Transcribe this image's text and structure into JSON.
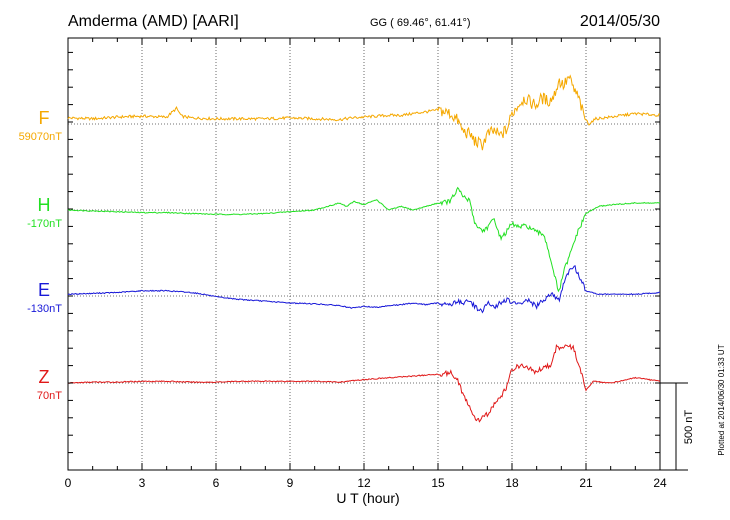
{
  "chart_data": {
    "type": "line",
    "title_station": "Amderma (AMD)  [AARI]",
    "title_coords": "GG ( 69.46°,  61.41°)",
    "title_date": "2014/05/30",
    "xlabel": "U T (hour)",
    "xlim": [
      0,
      24
    ],
    "xticks": [
      "0",
      "3",
      "6",
      "9",
      "12",
      "15",
      "18",
      "21",
      "24"
    ],
    "scale_label": "500 nT",
    "scale_nT": 500,
    "plotted_note": "Plotted at 2014/06/30 01:33 UT",
    "grid": true,
    "series": [
      {
        "name": "F",
        "baseline_label": "59070nT",
        "color": "#f5a800",
        "x": [
          0,
          1,
          2,
          3,
          4,
          4.4,
          4.6,
          5,
          6,
          7,
          8,
          9,
          10,
          11,
          11.5,
          12,
          12.5,
          13,
          13.5,
          14,
          14.5,
          15,
          15.5,
          15.8,
          16,
          16.3,
          16.5,
          16.8,
          17,
          17.3,
          17.5,
          17.8,
          18,
          18.2,
          18.5,
          18.8,
          19,
          19.2,
          19.5,
          19.7,
          19.9,
          20.1,
          20.3,
          20.5,
          20.7,
          20.9,
          21.1,
          21.4,
          22,
          22.5,
          23,
          23.5,
          24
        ],
        "values": [
          35,
          30,
          40,
          45,
          40,
          90,
          45,
          35,
          30,
          30,
          30,
          35,
          30,
          25,
          35,
          40,
          45,
          50,
          50,
          60,
          70,
          80,
          60,
          20,
          -40,
          -60,
          -100,
          -120,
          -60,
          -40,
          -70,
          -30,
          60,
          100,
          150,
          120,
          110,
          150,
          130,
          160,
          250,
          220,
          270,
          200,
          150,
          50,
          0,
          30,
          40,
          50,
          60,
          55,
          50
        ]
      },
      {
        "name": "H",
        "baseline_label": "-170nT",
        "color": "#22e022",
        "x": [
          0,
          1,
          2,
          3,
          4,
          5,
          6,
          7,
          8,
          9,
          10,
          10.5,
          11,
          11.3,
          11.6,
          12,
          12.5,
          13,
          13.5,
          14,
          14.5,
          15,
          15.5,
          15.8,
          16,
          16.3,
          16.5,
          16.8,
          17,
          17.3,
          17.5,
          17.7,
          18,
          18.3,
          18.6,
          19,
          19.3,
          19.6,
          19.9,
          20.1,
          20.3,
          20.6,
          21,
          21.5,
          22,
          23,
          24
        ],
        "values": [
          0,
          -5,
          -10,
          -15,
          -15,
          -20,
          -25,
          -25,
          -20,
          -10,
          0,
          20,
          40,
          20,
          50,
          30,
          60,
          0,
          20,
          0,
          20,
          40,
          50,
          120,
          80,
          50,
          -80,
          -120,
          -100,
          -50,
          -160,
          -140,
          -80,
          -100,
          -90,
          -130,
          -140,
          -300,
          -480,
          -350,
          -280,
          -150,
          -20,
          20,
          30,
          40,
          40
        ]
      },
      {
        "name": "E",
        "baseline_label": "-130nT",
        "color": "#1818d8",
        "x": [
          0,
          1,
          2,
          3,
          4,
          5,
          5.5,
          6,
          7,
          8,
          9,
          10,
          11,
          11.5,
          12,
          12.5,
          13,
          13.5,
          14,
          14.5,
          15,
          15.5,
          15.8,
          16,
          16.3,
          16.5,
          16.8,
          17,
          17.3,
          17.5,
          17.8,
          18,
          18.3,
          18.6,
          19,
          19.3,
          19.6,
          19.9,
          20.1,
          20.3,
          20.5,
          20.7,
          21,
          21.5,
          22,
          23,
          24
        ],
        "values": [
          10,
          15,
          20,
          30,
          30,
          20,
          10,
          -5,
          -20,
          -30,
          -40,
          -45,
          -55,
          -70,
          -60,
          -65,
          -55,
          -50,
          -40,
          -50,
          -40,
          -50,
          -30,
          -40,
          -30,
          -60,
          -90,
          -40,
          -70,
          -40,
          -20,
          -40,
          -50,
          -20,
          -60,
          -20,
          20,
          -30,
          80,
          130,
          180,
          120,
          30,
          10,
          10,
          10,
          20
        ]
      },
      {
        "name": "Z",
        "baseline_label": "70nT",
        "color": "#e01818",
        "x": [
          0,
          1,
          2,
          3,
          4,
          5,
          6,
          7,
          8,
          9,
          10,
          11,
          12,
          13,
          14,
          15,
          15.5,
          15.8,
          16,
          16.3,
          16.6,
          17,
          17.3,
          17.5,
          17.8,
          18,
          18.3,
          18.6,
          19,
          19.3,
          19.6,
          19.8,
          20,
          20.2,
          20.5,
          20.8,
          21,
          21.3,
          22,
          23,
          24
        ],
        "values": [
          0,
          5,
          5,
          10,
          10,
          5,
          5,
          10,
          10,
          10,
          10,
          5,
          20,
          30,
          40,
          50,
          60,
          20,
          -60,
          -150,
          -220,
          -180,
          -120,
          -90,
          -20,
          80,
          100,
          90,
          60,
          100,
          100,
          210,
          200,
          220,
          200,
          60,
          -40,
          10,
          0,
          30,
          10
        ]
      }
    ]
  }
}
